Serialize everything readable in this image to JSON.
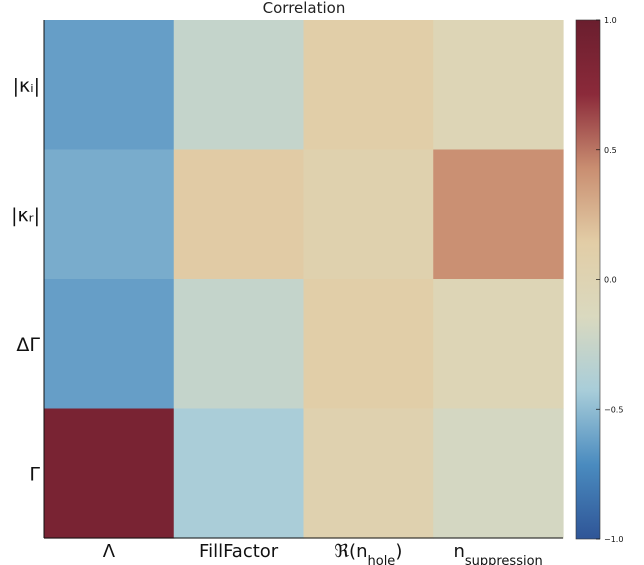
{
  "chart_data": {
    "type": "heatmap",
    "title": "Correlation",
    "x_categories": [
      "Λ",
      "FillFactor",
      "ℜ(n_hole)",
      "n_suppression"
    ],
    "y_categories": [
      "|κᵢ|",
      "|κᵣ|",
      "ΔΓ",
      "Γ"
    ],
    "values": [
      [
        -0.63,
        -0.27,
        0.12,
        -0.04
      ],
      [
        -0.57,
        0.15,
        0.05,
        0.42
      ],
      [
        -0.63,
        -0.27,
        0.12,
        -0.04
      ],
      [
        0.87,
        -0.42,
        0.04,
        -0.18
      ]
    ],
    "colorbar": {
      "min": -1.0,
      "max": 1.0,
      "ticks": [
        -1.0,
        -0.5,
        0.0,
        0.5,
        1.0
      ],
      "tick_labels": [
        "−1.0",
        "−0.5",
        "0.0",
        "0.5",
        "1.0"
      ]
    },
    "colormap": [
      "#2f5597",
      "#4a8bbf",
      "#a8cdd9",
      "#dad9bf",
      "#e2cda6",
      "#c98e71",
      "#8b2a3a",
      "#6a1e2e"
    ],
    "legend": "right (colorbar)",
    "grid": false
  }
}
